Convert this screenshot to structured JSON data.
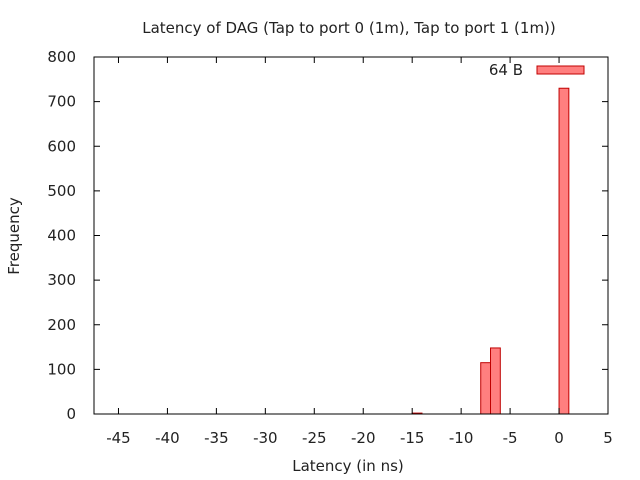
{
  "chart_data": {
    "type": "bar",
    "title": "Latency of DAG (Tap to port 0 (1m), Tap to port 1 (1m))",
    "xlabel": "Latency (in ns)",
    "ylabel": "Frequency",
    "xlim": [
      -47.5,
      5
    ],
    "ylim": [
      0,
      800
    ],
    "xticks": [
      -45,
      -40,
      -35,
      -30,
      -25,
      -20,
      -15,
      -10,
      -5,
      0,
      5
    ],
    "yticks": [
      0,
      100,
      200,
      300,
      400,
      500,
      600,
      700,
      800
    ],
    "bin_width": 1,
    "grid": false,
    "legend_position": "top-right",
    "series": [
      {
        "name": "64 B",
        "color": "#ff7f7f",
        "edge_color": "#c00000",
        "x": [
          -14.5,
          -7.5,
          -6.5,
          0.5
        ],
        "values": [
          2,
          115,
          148,
          730
        ]
      }
    ]
  }
}
